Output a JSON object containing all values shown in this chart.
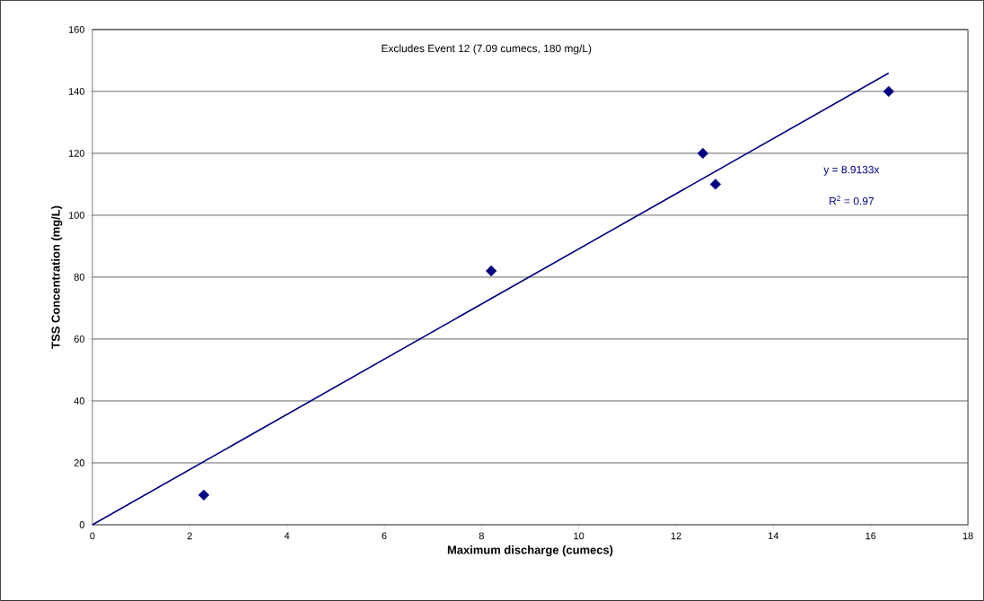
{
  "chart_data": {
    "type": "scatter",
    "xlabel": "Maximum discharge (cumecs)",
    "ylabel": "TSS Concentration (mg/L)",
    "xlim": [
      0,
      18
    ],
    "xticks": [
      0,
      2,
      4,
      6,
      8,
      10,
      12,
      14,
      16,
      18
    ],
    "ylim": [
      0,
      160
    ],
    "yticks": [
      0,
      20,
      40,
      60,
      80,
      100,
      120,
      140,
      160
    ],
    "grid": "y",
    "series": [
      {
        "marker": "diamond",
        "color": "#000080",
        "x": [
          2.29,
          8.2,
          12.55,
          12.81,
          16.37
        ],
        "values": [
          9.6,
          82,
          120,
          110,
          140
        ]
      },
      {
        "type": "line",
        "color": "#000080",
        "x": [
          0,
          16.37
        ],
        "values": [
          0,
          145.9
        ]
      }
    ],
    "annotations": [
      "Excludes Event 12 (7.09 cumecs, 180 mg/L)",
      "y = 8.9133x",
      "R$^{2}$ = 0.97"
    ]
  }
}
